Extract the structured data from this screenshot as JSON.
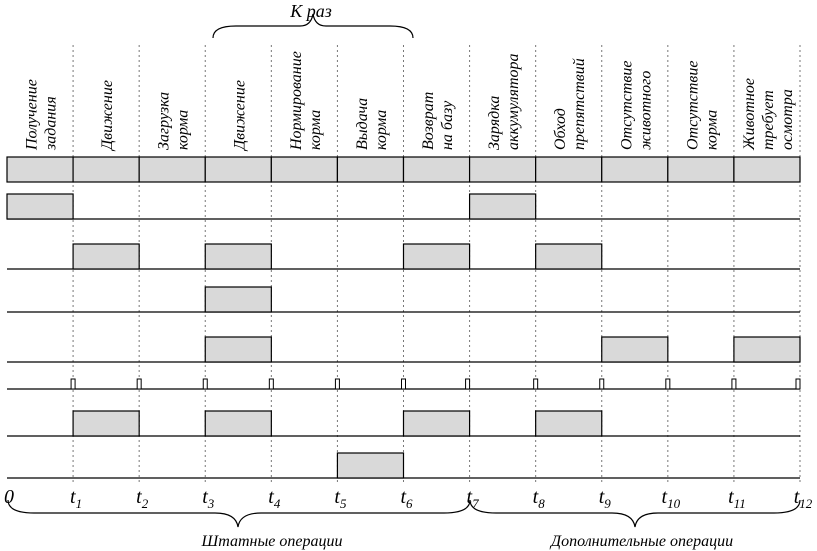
{
  "title": "К раз",
  "columns": [
    {
      "lines": [
        "Получение",
        "задания"
      ]
    },
    {
      "lines": [
        "Движение"
      ]
    },
    {
      "lines": [
        "Загрузка",
        "корма"
      ]
    },
    {
      "lines": [
        "Движение"
      ]
    },
    {
      "lines": [
        "Нормирование",
        "корма"
      ]
    },
    {
      "lines": [
        "Выдача",
        "корма"
      ]
    },
    {
      "lines": [
        "Возврат",
        "на базу"
      ]
    },
    {
      "lines": [
        "Зарядка",
        "аккумулятора"
      ]
    },
    {
      "lines": [
        "Обход",
        "препятствий"
      ]
    },
    {
      "lines": [
        "Отсутствие",
        "животного"
      ]
    },
    {
      "lines": [
        "Отсутствие",
        "корма"
      ]
    },
    {
      "lines": [
        "Животное",
        "требует",
        "осмотра"
      ]
    }
  ],
  "time_labels": [
    {
      "base": "0",
      "sub": ""
    },
    {
      "base": "t",
      "sub": "1"
    },
    {
      "base": "t",
      "sub": "2"
    },
    {
      "base": "t",
      "sub": "3"
    },
    {
      "base": "t",
      "sub": "4"
    },
    {
      "base": "t",
      "sub": "5"
    },
    {
      "base": "t",
      "sub": "6"
    },
    {
      "base": "t",
      "sub": "7"
    },
    {
      "base": "t",
      "sub": "8"
    },
    {
      "base": "t",
      "sub": "9"
    },
    {
      "base": "t",
      "sub": "10"
    },
    {
      "base": "t",
      "sub": "11"
    },
    {
      "base": "t",
      "sub": "12"
    }
  ],
  "signals": [
    {
      "name": "signal-1",
      "high_intervals": [
        [
          0,
          1
        ],
        [
          7,
          8
        ]
      ]
    },
    {
      "name": "signal-2",
      "high_intervals": [
        [
          1,
          2
        ],
        [
          3,
          4
        ],
        [
          6,
          7
        ],
        [
          8,
          9
        ]
      ]
    },
    {
      "name": "signal-3",
      "high_intervals": [
        [
          3,
          4
        ]
      ]
    },
    {
      "name": "signal-4",
      "high_intervals": [
        [
          3,
          4
        ],
        [
          9,
          10
        ],
        [
          11,
          12
        ]
      ]
    },
    {
      "name": "clock",
      "pulse_at_each_tick": true
    },
    {
      "name": "signal-5",
      "high_intervals": [
        [
          1,
          2
        ],
        [
          3,
          4
        ],
        [
          6,
          7
        ],
        [
          8,
          9
        ]
      ]
    },
    {
      "name": "signal-6",
      "high_intervals": [
        [
          5,
          6
        ]
      ]
    }
  ],
  "groups": {
    "standard": "Штатные операции",
    "additional": "Дополнительные операции"
  },
  "colors": {
    "fill": "#d9d9d9",
    "line": "#000000",
    "dotted": "#777777"
  }
}
